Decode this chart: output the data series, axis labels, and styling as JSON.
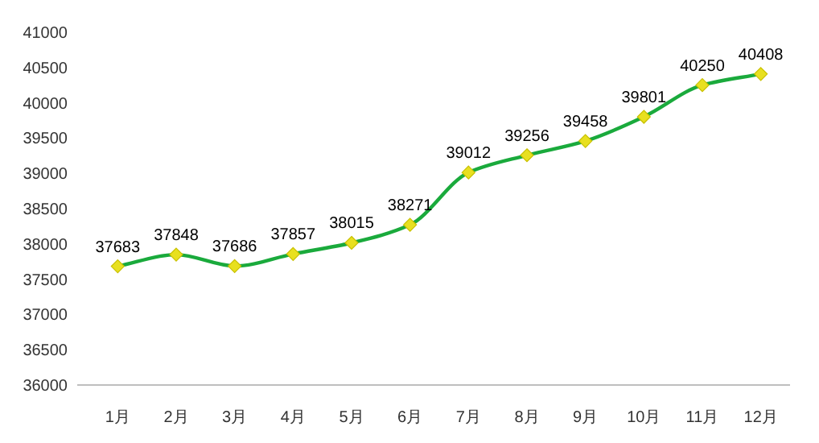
{
  "chart_data": {
    "type": "line",
    "categories": [
      "1月",
      "2月",
      "3月",
      "4月",
      "5月",
      "6月",
      "7月",
      "8月",
      "9月",
      "10月",
      "11月",
      "12月"
    ],
    "values": [
      37683,
      37848,
      37686,
      37857,
      38015,
      38271,
      39012,
      39256,
      39458,
      39801,
      40250,
      40408
    ],
    "color": "#1aaa3c",
    "ylim": [
      36000,
      41000
    ],
    "yticks": [
      36000,
      36500,
      37000,
      37500,
      38000,
      38500,
      39000,
      39500,
      40000,
      40500,
      41000
    ],
    "data_labels": true,
    "marker": "diamond",
    "grid": false
  }
}
